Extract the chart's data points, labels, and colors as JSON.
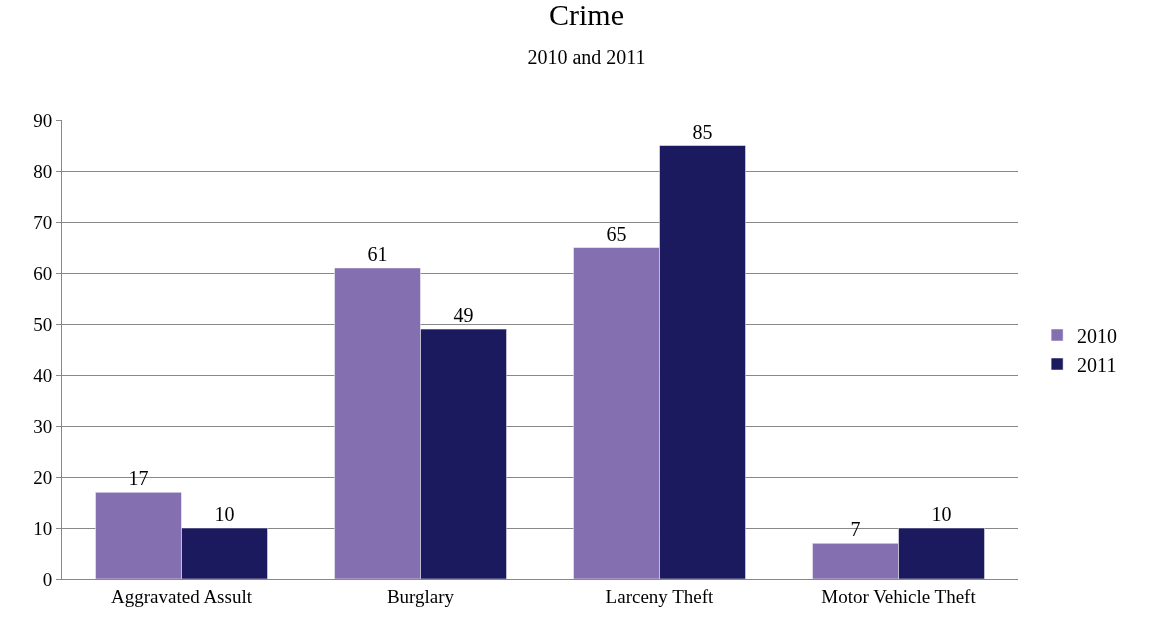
{
  "chart_data": {
    "type": "bar",
    "title": "Crime",
    "subtitle": "2010 and 2011",
    "categories": [
      "Aggravated Assult",
      "Burglary",
      "Larceny Theft",
      "Motor Vehicle Theft"
    ],
    "series": [
      {
        "name": "2010",
        "color": "#8470b0",
        "values": [
          17,
          61,
          65,
          7
        ]
      },
      {
        "name": "2011",
        "color": "#1c1a5e",
        "values": [
          10,
          49,
          85,
          10
        ]
      }
    ],
    "ylim": [
      0,
      90
    ],
    "yticks": [
      0,
      10,
      20,
      30,
      40,
      50,
      60,
      70,
      80,
      90
    ],
    "grid": "y",
    "legend": "right",
    "data_labels": true
  }
}
